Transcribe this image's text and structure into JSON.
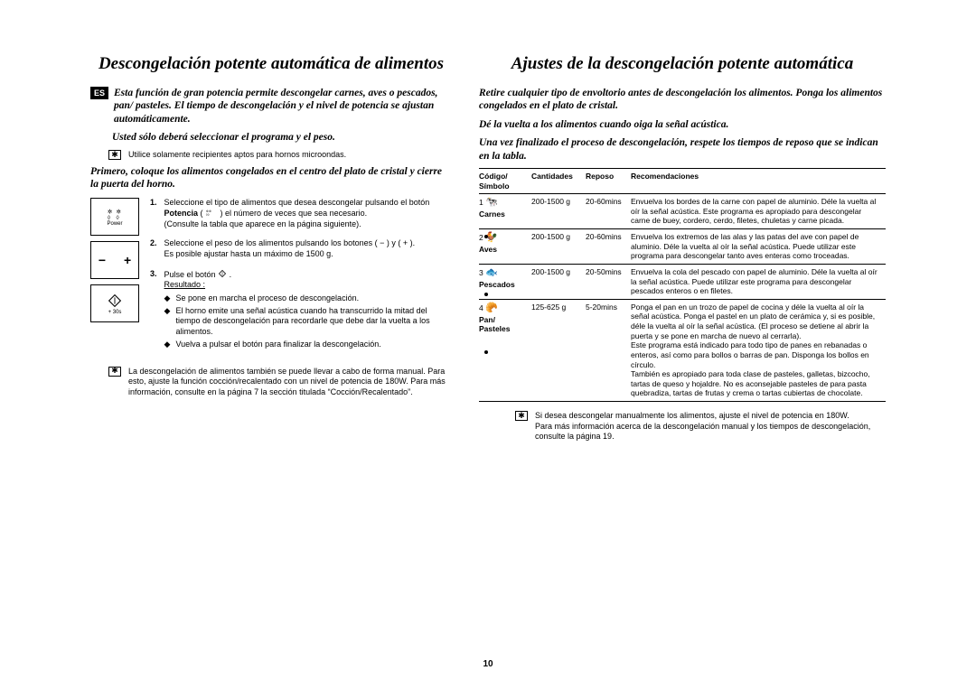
{
  "page_number": "10",
  "lang_badge": "ES",
  "left": {
    "title": "Descongelación potente automática de alimentos",
    "intro1": "Esta función de gran potencia permite descongelar carnes, aves o pescados, pan/ pasteles. El tiempo de descongelación y el nivel de potencia se ajustan automáticamente.",
    "intro2": "Usted sólo deberá seleccionar el programa y el peso.",
    "note1": "Utilice solamente recipientes aptos para hornos microondas.",
    "intro3": "Primero, coloque los alimentos congelados en el centro del plato de cristal y cierre la puerta del horno.",
    "power_label": "Power",
    "plus30_label": "+ 30s",
    "step1_a": "Seleccione el tipo de alimentos que desea descongelar pulsando el botón ",
    "step1_bold": "Potencia",
    "step1_b": " ( ",
    "step1_c": " ) el número de veces que sea necesario.",
    "step1_d": "(Consulte la tabla que aparece en la página siguiente).",
    "step2_a": "Seleccione el peso de los alimentos pulsando los botones ( − ) y ( + ).",
    "step2_b": "Es posible ajustar hasta un máximo de 1500 g.",
    "step3_a": "Pulse el botón ",
    "step3_b": " .",
    "step3_res": "Resultado :",
    "step3_r1": "Se pone en marcha el proceso de descongelación.",
    "step3_r2": "El horno emite una señal acústica cuando ha transcurrido la mitad del tiempo de descongelación para recordarle que debe dar la vuelta a los alimentos.",
    "step3_r3": "Vuelva a pulsar el botón para finalizar la descongelación.",
    "final_note": "La descongelación de alimentos también se puede llevar a cabo de forma manual. Para esto, ajuste la función cocción/recalentado con un nivel de potencia de 180W. Para más información, consulte en la página 7 la sección titulada “Cocción/Recalentado”."
  },
  "right": {
    "title": "Ajustes de la descongelación potente automática",
    "intro1": "Retire cualquier tipo de envoltorio antes de descongelación los alimentos. Ponga los alimentos congelados en el plato de cristal.",
    "intro2": "Dé la vuelta a los alimentos cuando oiga la señal acústica.",
    "intro3": "Una vez finalizado el proceso de descongelación, respete los tiempos de reposo que se indican en la tabla.",
    "headers": {
      "code": "Código/\nSímbolo",
      "qty": "Cantidades",
      "rest": "Reposo",
      "rec": "Recomendaciones"
    },
    "rows": [
      {
        "num": "1",
        "name": "Carnes",
        "qty": "200-1500 g",
        "rest": "20-60mins",
        "rec": "Envuelva los bordes de la carne con papel de aluminio. Déle la vuelta al oír la señal acústica. Este programa es apropiado para descongelar carne de buey, cordero, cerdo, filetes, chuletas y carne picada."
      },
      {
        "num": "2",
        "name": "Aves",
        "qty": "200-1500 g",
        "rest": "20-60mins",
        "rec": "Envuelva los extremos de las alas y las patas del ave con papel de aluminio. Déle la vuelta al oír la señal acústica. Puede utilizar este programa para descongelar tanto aves enteras como troceadas."
      },
      {
        "num": "3",
        "name": "Pescados",
        "qty": "200-1500 g",
        "rest": "20-50mins",
        "rec": "Envuelva la cola del pescado con papel de aluminio. Déle la vuelta al oír la señal acústica. Puede utilizar este programa para descongelar pescados enteros o en filetes."
      },
      {
        "num": "4",
        "name": "Pan/\nPasteles",
        "qty": "125-625 g",
        "rest": "5-20mins",
        "rec": "Ponga el pan en un trozo de papel de cocina y déle la vuelta al oír la señal acústica. Ponga el pastel en un plato de cerámica y, si es posible, déle la vuelta al oír la señal acústica. (El proceso se detiene al abrir la puerta y se pone en marcha de nuevo al cerrarla).\nEste programa está indicado para todo tipo de panes en rebanadas o enteros, así como para bollos o barras de pan. Disponga los bollos en círculo.\nTambién es apropiado para toda clase de pasteles, galletas, bizcocho, tartas de queso y hojaldre. No es aconsejable pasteles de para pasta quebradiza, tartas de frutas y crema o tartas cubiertas de chocolate."
      }
    ],
    "final_note": "Si desea descongelar manualmente los alimentos, ajuste el nivel de potencia en 180W.\nPara más información acerca de la descongelación manual y los tiempos de descongelación, consulte la página 19."
  }
}
